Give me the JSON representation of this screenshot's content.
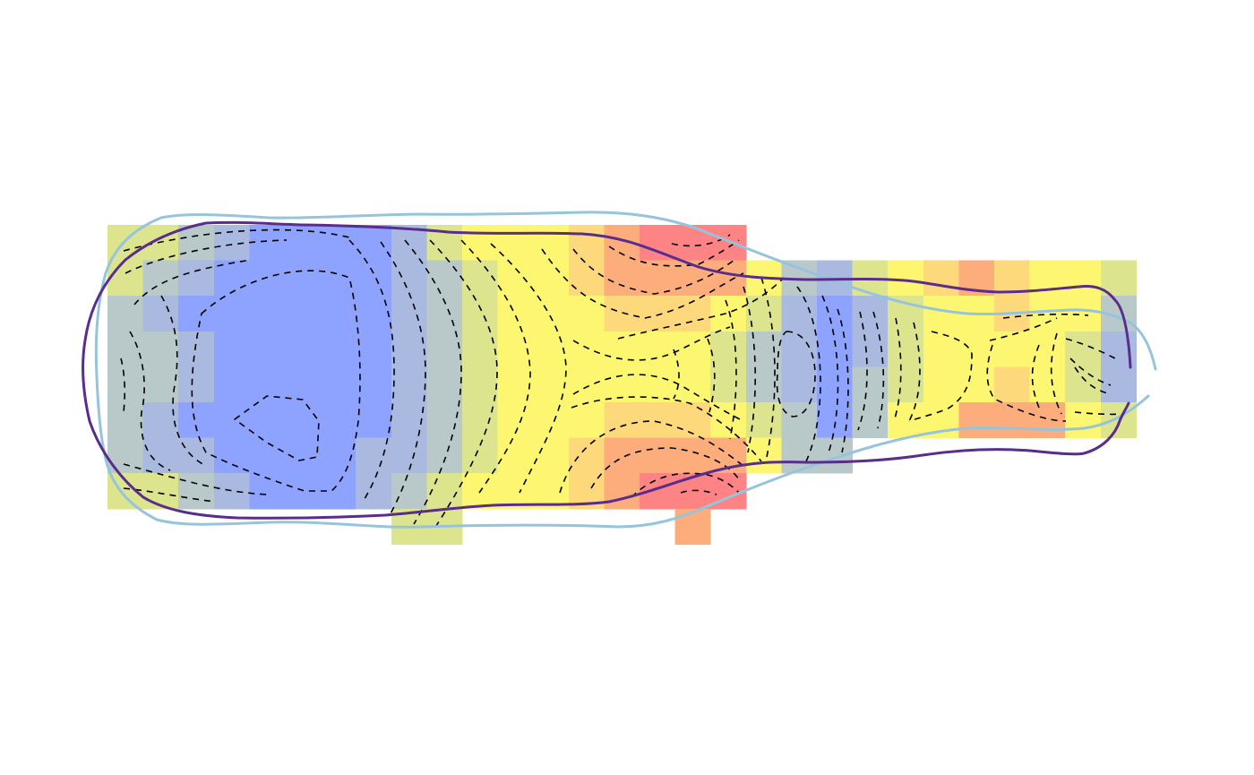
{
  "chart_data": {
    "type": "heatmap",
    "title": "",
    "xlabel": "",
    "ylabel": "",
    "axes_visible": false,
    "legend": "none",
    "grid": false,
    "xlim": [
      0,
      29
    ],
    "ylim": [
      0,
      9
    ],
    "value_range": [
      0,
      1
    ],
    "colors": {
      "scale": [
        "#8ea2ff",
        "#a9b9e0",
        "#b9c8c8",
        "#dde48e",
        "#fdf671",
        "#fed97c",
        "#fdac7c",
        "#fe8384"
      ],
      "contour": "#000000",
      "outline_outer": "#96c4dd",
      "outline_inner": "#592d8c"
    },
    "grid_values": [
      [
        null,
        null,
        null,
        null,
        null,
        null,
        null,
        null,
        0.38,
        0.45,
        null,
        null,
        null,
        null,
        null,
        null,
        0.85,
        null,
        null,
        null,
        null,
        null,
        null,
        null,
        null,
        null,
        null,
        null,
        null
      ],
      [
        0.48,
        0.38,
        0.32,
        0.2,
        0.1,
        0.1,
        0.1,
        0.1,
        0.22,
        0.38,
        0.5,
        0.55,
        0.62,
        0.72,
        0.8,
        0.9,
        0.9,
        0.92,
        null,
        null,
        null,
        null,
        null,
        null,
        null,
        null,
        null,
        null,
        null
      ],
      [
        0.38,
        0.3,
        0.22,
        0.1,
        0.01,
        0.01,
        0.01,
        0.1,
        0.22,
        0.35,
        0.48,
        0.55,
        0.62,
        0.68,
        0.75,
        0.8,
        0.82,
        0.85,
        0.6,
        0.3,
        0.2,
        0.45,
        0.62,
        0.7,
        0.75,
        0.72,
        0.6,
        0.55,
        0.48
      ],
      [
        0.3,
        0.2,
        0.12,
        0.05,
        0.01,
        0.01,
        0.01,
        0.1,
        0.22,
        0.35,
        0.45,
        0.55,
        0.6,
        0.62,
        0.65,
        0.7,
        0.72,
        0.62,
        0.45,
        0.22,
        0.05,
        0.2,
        0.45,
        0.55,
        0.62,
        0.65,
        0.6,
        0.5,
        0.3
      ],
      [
        0.35,
        0.25,
        0.15,
        0.05,
        0.01,
        0.01,
        0.01,
        0.12,
        0.22,
        0.35,
        0.45,
        0.55,
        0.58,
        0.55,
        0.52,
        0.55,
        0.52,
        0.45,
        0.35,
        0.15,
        0.01,
        0.2,
        0.38,
        0.5,
        0.55,
        0.62,
        0.55,
        0.4,
        0.22
      ],
      [
        0.35,
        0.25,
        0.15,
        0.05,
        0.01,
        0.01,
        0.01,
        0.12,
        0.22,
        0.35,
        0.45,
        0.55,
        0.55,
        0.55,
        0.52,
        0.52,
        0.5,
        0.45,
        0.35,
        0.2,
        0.01,
        0.25,
        0.42,
        0.55,
        0.62,
        0.65,
        0.6,
        0.48,
        0.22
      ],
      [
        0.32,
        0.22,
        0.12,
        0.05,
        0.01,
        0.01,
        0.01,
        0.12,
        0.22,
        0.35,
        0.45,
        0.55,
        0.58,
        0.62,
        0.65,
        0.68,
        0.7,
        0.62,
        0.45,
        0.25,
        0.1,
        0.3,
        0.5,
        0.62,
        0.8,
        0.85,
        0.78,
        0.6,
        0.48
      ],
      [
        0.3,
        0.22,
        0.15,
        0.08,
        0.01,
        0.01,
        0.05,
        0.15,
        0.22,
        0.35,
        0.45,
        0.55,
        0.62,
        0.7,
        0.75,
        0.8,
        0.82,
        0.85,
        0.6,
        0.28,
        0.28,
        null,
        null,
        null,
        null,
        null,
        null,
        null,
        null
      ],
      [
        0.48,
        0.38,
        0.3,
        0.2,
        0.1,
        0.1,
        0.1,
        0.15,
        0.28,
        0.4,
        0.5,
        0.55,
        0.62,
        0.72,
        0.8,
        0.88,
        0.9,
        0.92,
        null,
        null,
        null,
        null,
        null,
        null,
        null,
        null,
        null,
        null,
        null
      ],
      [
        null,
        null,
        null,
        null,
        null,
        null,
        null,
        null,
        0.38,
        0.45,
        null,
        null,
        null,
        null,
        null,
        null,
        0.85,
        null,
        null,
        null,
        null,
        null,
        null,
        null,
        null,
        null,
        null,
        null,
        null
      ]
    ]
  }
}
